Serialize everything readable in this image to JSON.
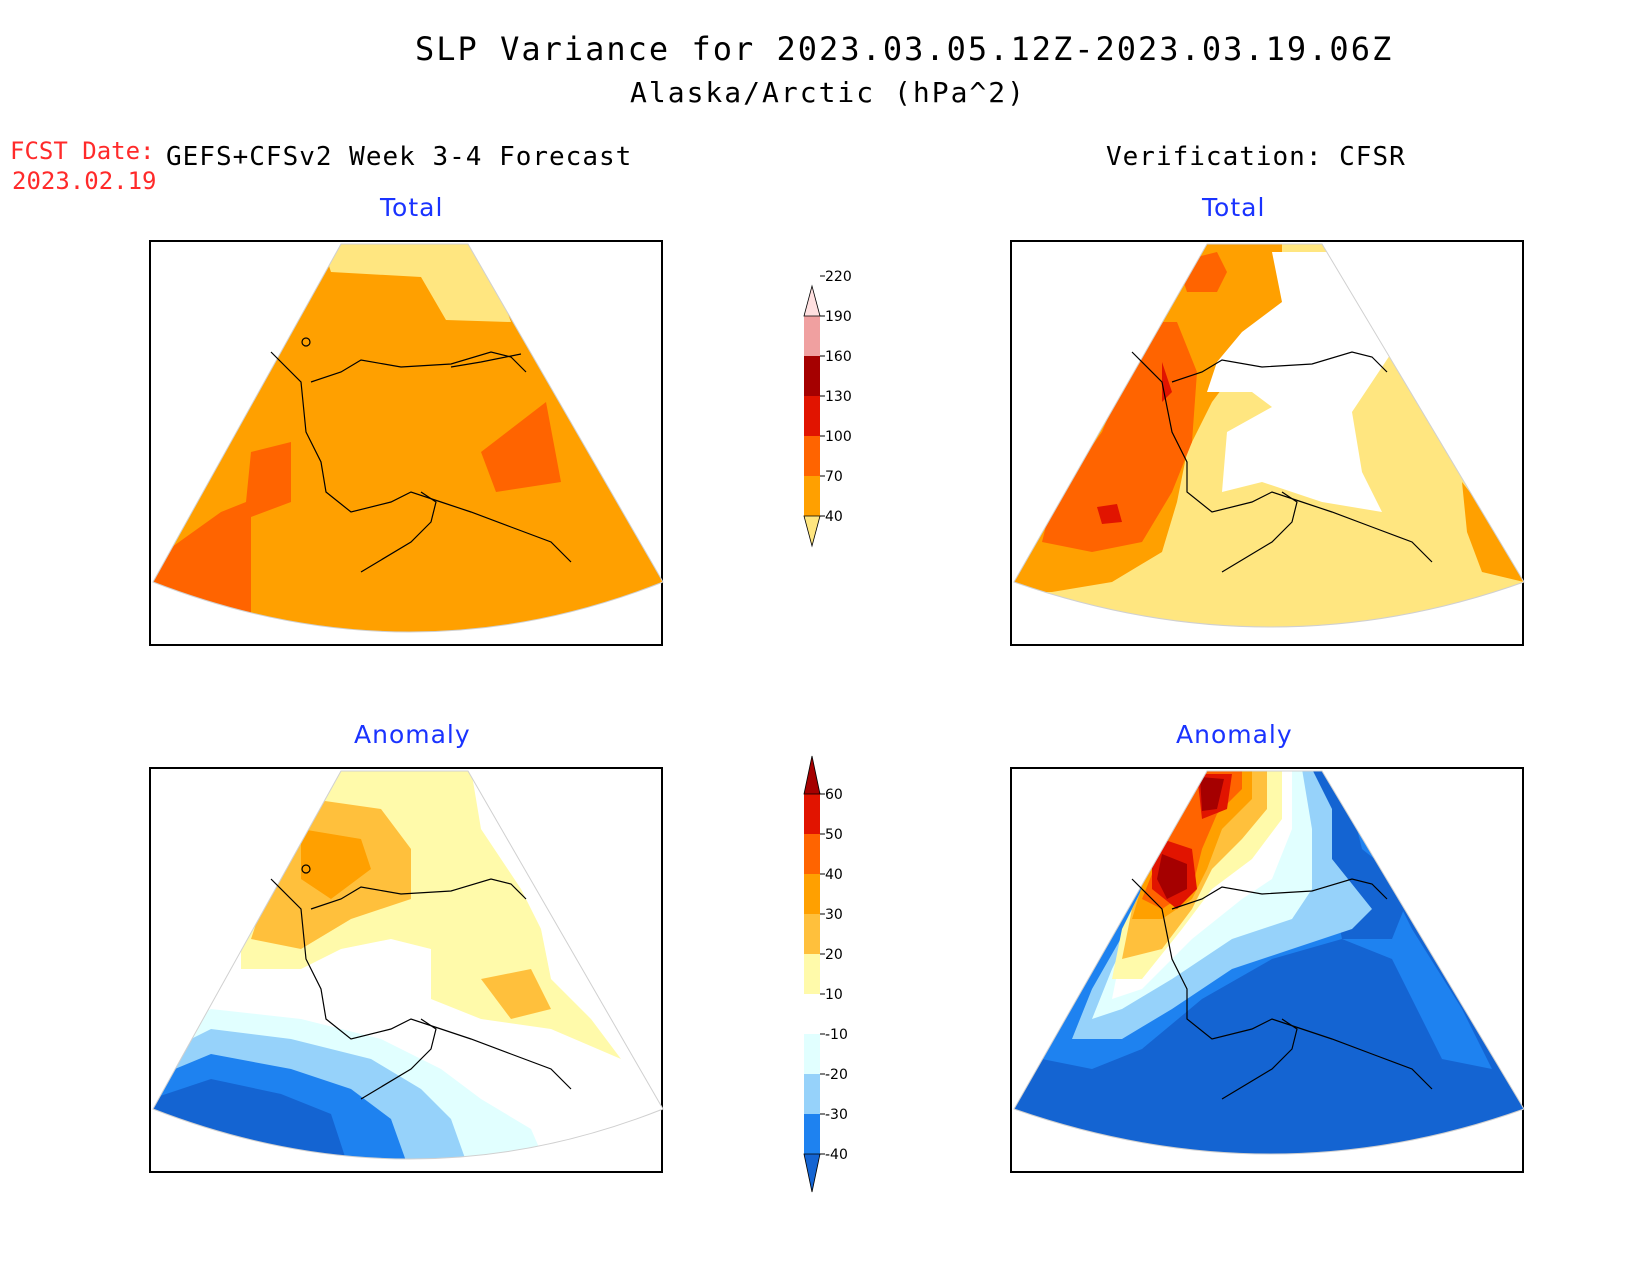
{
  "header": {
    "title": "SLP Variance for 2023.03.05.12Z-2023.03.19.06Z",
    "subtitle": "Alaska/Arctic (hPa^2)",
    "fcst_label": "FCST Date:",
    "fcst_date": "2023.02.19",
    "left_heading": "GEFS+CFSv2 Week 3-4 Forecast",
    "right_heading": "Verification: CFSR"
  },
  "panels": {
    "forecast_total": {
      "title": "Total"
    },
    "verification_total": {
      "title": "Total"
    },
    "forecast_anomaly": {
      "title": "Anomaly"
    },
    "verification_anomaly": {
      "title": "Anomaly"
    }
  },
  "colorbars": {
    "total": {
      "labels": [
        "40",
        "70",
        "100",
        "130",
        "160",
        "190",
        "220"
      ],
      "colors": [
        "#ffe680",
        "#ffa000",
        "#ff6400",
        "#e11400",
        "#a50000",
        "#f0a0a0",
        "#ffe0e0"
      ]
    },
    "anomaly": {
      "labels": [
        "-40",
        "-30",
        "-20",
        "-10",
        "10",
        "20",
        "30",
        "40",
        "50",
        "60"
      ],
      "colors": [
        "#1464d2",
        "#1e82f0",
        "#96d2fa",
        "#e1ffff",
        "#ffffff",
        "#fffaaa",
        "#ffc03c",
        "#ffa000",
        "#ff6400",
        "#e11400",
        "#a50000"
      ]
    }
  }
}
